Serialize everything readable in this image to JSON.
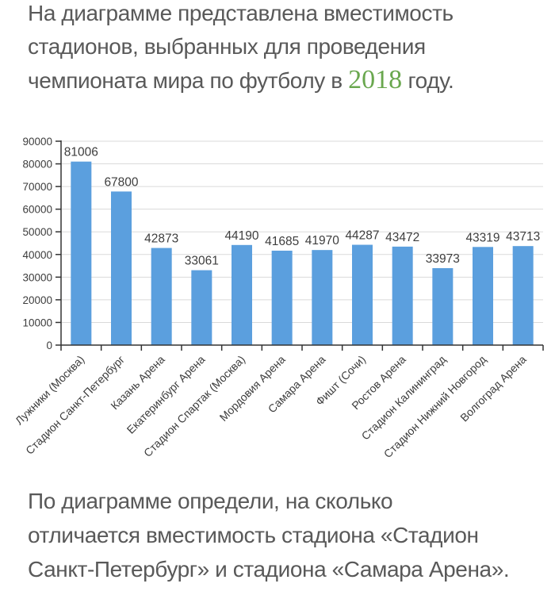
{
  "intro": {
    "lines": [
      "На диаграмме представлена вместимость",
      "стадионов, выбранных для проведения"
    ],
    "line3_before": "чемпионата мира по футболу в ",
    "year": "2018",
    "line3_after": " году."
  },
  "question": {
    "lines": [
      "По диаграмме определи, на сколько",
      "отличается вместимость стадиона «Стадион",
      "Санкт-Петербург» и стадиона «Самара Арена»."
    ]
  },
  "chart_data": {
    "type": "bar",
    "categories": [
      "Лужники (Москва)",
      "Стадион Санкт-Петербург",
      "Казань Арена",
      "Екатеринбург Арена",
      "Стадион Спартак (Москва)",
      "Мордовия Арена",
      "Самара Арена",
      "Фишт (Сочи)",
      "Ростов Арена",
      "Стадион Калининград",
      "Стадион Нижний Новгород",
      "Волгоград Арена"
    ],
    "values": [
      81006,
      67800,
      42873,
      33061,
      44190,
      41685,
      41970,
      44287,
      43472,
      33973,
      43319,
      43713
    ],
    "title": "",
    "xlabel": "",
    "ylabel": "",
    "ylim": [
      0,
      90000
    ],
    "ytick_step": 10000,
    "grid": true,
    "legend": false,
    "value_labels": true,
    "bar_color": "#5B9FDE"
  },
  "colors": {
    "body_text": "#595959",
    "year_green": "#69A74E",
    "axis": "#333333",
    "gridline": "#DADADA",
    "chart_text": "#3D3D3D"
  }
}
